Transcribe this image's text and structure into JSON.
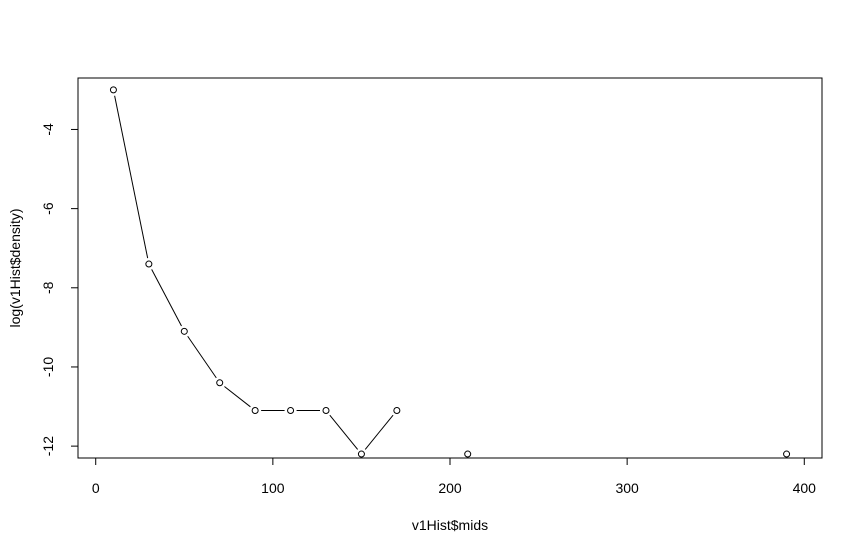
{
  "chart_data": {
    "type": "line",
    "title": "",
    "xlabel": "v1Hist$mids",
    "ylabel": "log(v1Hist$density)",
    "xlim": [
      -10,
      410
    ],
    "ylim": [
      -12.3,
      -2.7
    ],
    "xticks": [
      0,
      100,
      200,
      300,
      400
    ],
    "yticks": [
      -4,
      -6,
      -8,
      -10,
      -12
    ],
    "grid": false,
    "legend": "none",
    "colors": {
      "line": "#000000",
      "point_fill": "#ffffff",
      "point_stroke": "#000000"
    },
    "series": [
      {
        "points": [
          {
            "x": 10,
            "y": -3.0
          },
          {
            "x": 30,
            "y": -7.4
          },
          {
            "x": 50,
            "y": -9.1
          },
          {
            "x": 70,
            "y": -10.4
          },
          {
            "x": 90,
            "y": -11.1
          },
          {
            "x": 110,
            "y": -11.1
          },
          {
            "x": 130,
            "y": -11.1
          },
          {
            "x": 150,
            "y": -12.2
          },
          {
            "x": 170,
            "y": -11.1
          },
          {
            "x": 210,
            "y": -12.2
          },
          {
            "x": 390,
            "y": -12.2
          }
        ],
        "segments": [
          [
            0,
            8
          ]
        ]
      }
    ]
  }
}
